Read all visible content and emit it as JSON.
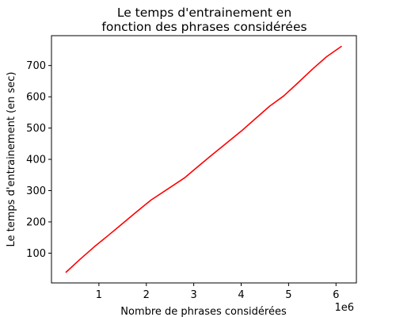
{
  "chart_data": {
    "type": "line",
    "title_lines": [
      "Le temps d'entrainement en",
      "fonction des phrases considérées"
    ],
    "xlabel": "Nombre de phrases considérées",
    "ylabel": "Le temps d'entrainement (en sec)",
    "x_offset_label": "1e6",
    "x_unit_multiplier": 1000000,
    "xlim": [
      0.0,
      6.43
    ],
    "ylim": [
      4.8,
      795.5
    ],
    "xticks": [
      1,
      2,
      3,
      4,
      5,
      6
    ],
    "yticks": [
      100,
      200,
      300,
      400,
      500,
      600,
      700
    ],
    "grid": false,
    "line_color": "#ff0000",
    "series": [
      {
        "x": [
          0.3,
          0.6,
          0.9,
          1.2,
          1.5,
          1.8,
          2.1,
          2.45,
          2.8,
          3.05,
          3.35,
          3.7,
          4.0,
          4.3,
          4.6,
          4.9,
          5.2,
          5.5,
          5.8,
          6.12
        ],
        "y": [
          38,
          80,
          120,
          157,
          195,
          233,
          270,
          305,
          340,
          372,
          410,
          453,
          490,
          530,
          570,
          603,
          645,
          688,
          728,
          762
        ]
      }
    ]
  }
}
